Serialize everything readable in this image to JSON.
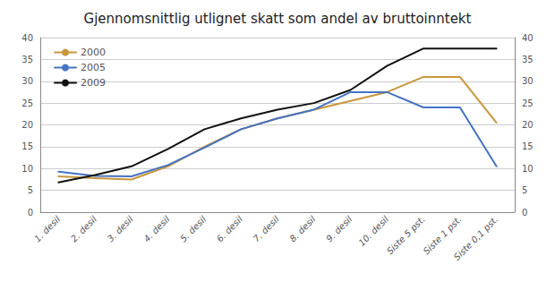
{
  "chart_data": {
    "type": "line",
    "title": "Gjennomsnittlig utlignet skatt som andel av bruttoinntekt",
    "categories": [
      "1. desil",
      "2. desil",
      "3. desil",
      "4. desil",
      "5. desil",
      "6. desil",
      "7. desil",
      "8. desil",
      "9. desil",
      "10. desil",
      "Siste 5 pst.",
      "Siste 1 pst.",
      "Siste 0,1 pst."
    ],
    "series": [
      {
        "name": "2000",
        "color": "#C8963C",
        "values": [
          8.2,
          7.8,
          7.5,
          10.5,
          15.0,
          19.0,
          21.5,
          23.5,
          25.5,
          27.5,
          31.0,
          31.0,
          20.5
        ]
      },
      {
        "name": "2005",
        "color": "#4472C4",
        "values": [
          9.3,
          8.3,
          8.2,
          10.8,
          14.8,
          19.0,
          21.5,
          23.5,
          27.5,
          27.5,
          24.0,
          24.0,
          10.5
        ]
      },
      {
        "name": "2009",
        "color": "#111111",
        "values": [
          6.8,
          8.5,
          10.5,
          14.5,
          19.0,
          21.5,
          23.5,
          25.0,
          28.0,
          33.5,
          37.5,
          37.5,
          37.5
        ]
      }
    ],
    "ylim": [
      0,
      40
    ],
    "yticks": [
      0,
      5,
      10,
      15,
      20,
      25,
      30,
      35,
      40
    ],
    "y2lim": [
      0,
      40
    ],
    "y2ticks": [
      0,
      5,
      10,
      15,
      20,
      25,
      30,
      35,
      40
    ],
    "grid": true,
    "legend": "upper left"
  }
}
